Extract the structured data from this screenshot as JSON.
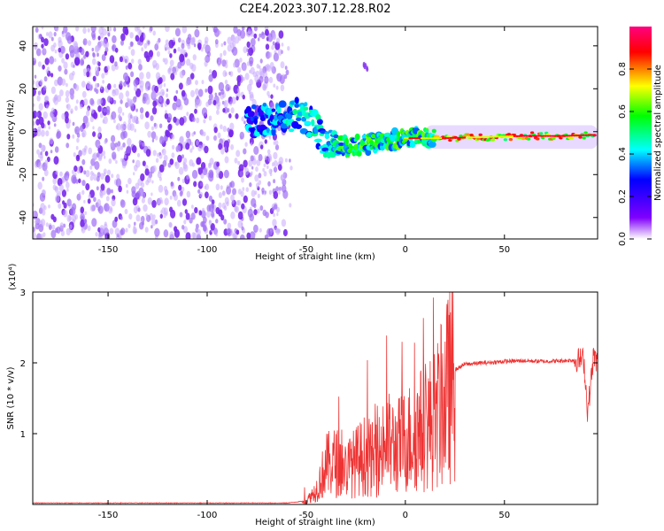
{
  "title": "C2E4.2023.307.12.28.R02",
  "chart_data": [
    {
      "type": "heatmap",
      "xlabel": "Height of straight line (km)",
      "ylabel": "Frequency (Hz)",
      "xlim": [
        -188,
        97
      ],
      "ylim": [
        -50,
        49
      ],
      "xticks": [
        -150,
        -100,
        -50,
        0,
        50
      ],
      "yticks": [
        -40,
        -20,
        0,
        20,
        40
      ],
      "colorbar": {
        "label": "Normalized spectral amplitude",
        "range": [
          0,
          1
        ],
        "ticks": [
          "0.0",
          "0.2",
          "0.4",
          "0.6",
          "0.8"
        ],
        "colormap": [
          "#ffffff",
          "#8000ff",
          "#0000ff",
          "#00ffff",
          "#00ff00",
          "#ffff00",
          "#ff0000",
          "#ff0080"
        ]
      },
      "features": [
        {
          "name": "noise",
          "x_range": [
            -188,
            -60
          ],
          "freq_range": [
            -50,
            49
          ],
          "amplitude": 0.15
        },
        {
          "name": "track",
          "points": [
            {
              "x": -75,
              "f": 5
            },
            {
              "x": -55,
              "f": 8
            },
            {
              "x": -48,
              "f": 5
            },
            {
              "x": -40,
              "f": -5
            },
            {
              "x": -30,
              "f": -7
            },
            {
              "x": -20,
              "f": -6
            },
            {
              "x": -10,
              "f": -4
            },
            {
              "x": 0,
              "f": -3
            },
            {
              "x": 10,
              "f": -3
            },
            {
              "x": 20,
              "f": -3
            },
            {
              "x": 40,
              "f": -2.5
            },
            {
              "x": 60,
              "f": -2
            },
            {
              "x": 80,
              "f": -2
            },
            {
              "x": 95,
              "f": -1.5
            }
          ]
        }
      ]
    },
    {
      "type": "line",
      "xlabel": "Height of straight line (km)",
      "ylabel": "SNR (10 * v/v)",
      "scale_label": "(x10⁴)",
      "xlim": [
        -188,
        97
      ],
      "ylim": [
        0,
        3
      ],
      "xticks": [
        -150,
        -100,
        -50,
        0,
        50
      ],
      "yticks": [
        1,
        2,
        3
      ],
      "series": [
        {
          "color": "#ee3333",
          "x": [
            -188,
            -60,
            -50,
            -45,
            -40,
            -35,
            -30,
            -25,
            -20,
            -15,
            -10,
            -5,
            0,
            5,
            10,
            15,
            20,
            25,
            30,
            40,
            50,
            60,
            70,
            80,
            85,
            90,
            92,
            95,
            97
          ],
          "y": [
            0.02,
            0.02,
            0.05,
            0.2,
            0.55,
            0.6,
            0.5,
            0.6,
            0.7,
            0.6,
            0.9,
            0.8,
            0.9,
            1.0,
            1.1,
            1.2,
            1.5,
            1.9,
            1.98,
            2.0,
            2.02,
            2.03,
            2.02,
            2.03,
            2.04,
            2.05,
            1.3,
            2.1,
            2.0
          ]
        }
      ]
    }
  ]
}
